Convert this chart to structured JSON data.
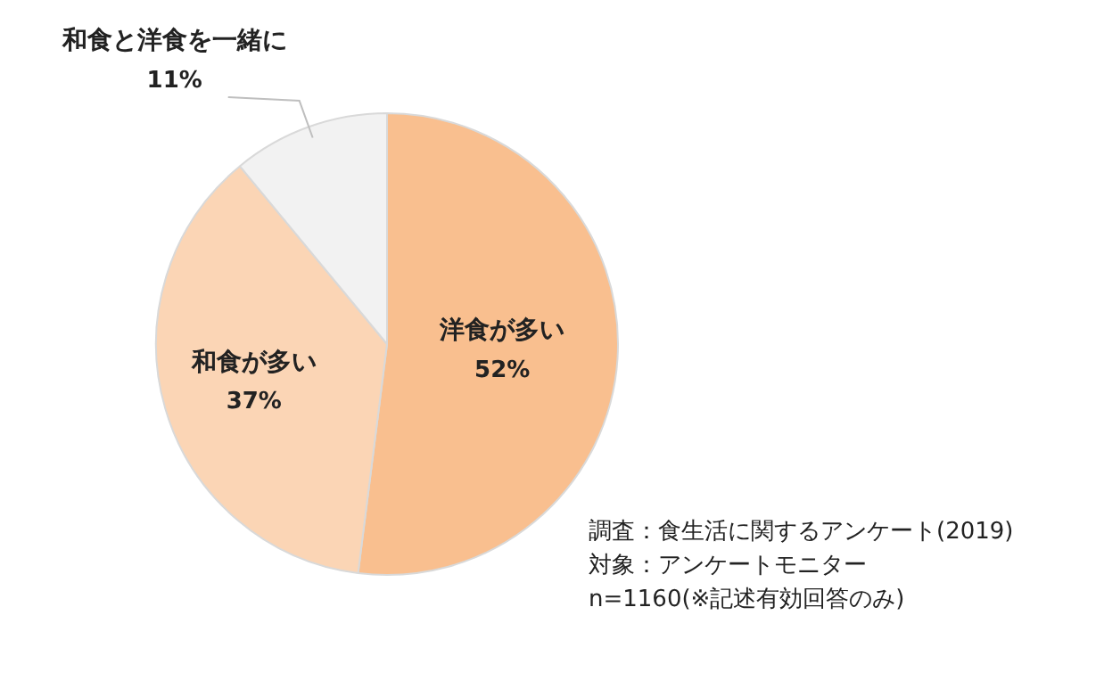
{
  "chart_data": {
    "type": "pie",
    "categories": [
      "洋食が多い",
      "和食が多い",
      "和食と洋食を一緒に"
    ],
    "values": [
      52,
      37,
      11
    ],
    "colors": [
      "#f9bf8f",
      "#fbd5b5",
      "#f2f2f2"
    ],
    "value_labels": [
      "52%",
      "37%",
      "11%"
    ],
    "legend": false,
    "annotations": [
      "調査：食生活に関するアンケート(2019)",
      "対象：アンケートモニター",
      "n=1160(※記述有効回答のみ)"
    ]
  }
}
